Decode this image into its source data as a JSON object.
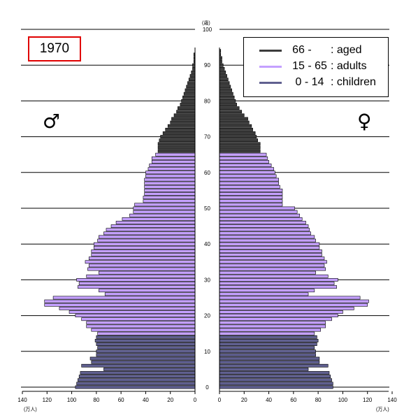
{
  "year_label": "1970",
  "male_symbol": "♂",
  "female_symbol": "♀",
  "legend": [
    {
      "age": "66 -     ",
      "name": ": aged",
      "color": "#3c3c3c"
    },
    {
      "age": "15 - 65",
      "name": ": adults",
      "color": "#c4a0ff"
    },
    {
      "age": "0 - 14",
      "name": ": children",
      "color": "#606090"
    }
  ],
  "units": {
    "age_unit": "(歳)",
    "pop_unit_left": "(万人)",
    "pop_unit_right": "(万人)"
  },
  "chart_data": {
    "type": "bar",
    "orientation": "horizontal-butterfly",
    "title": "1970",
    "age_axis": {
      "ticks": [
        0,
        10,
        20,
        30,
        40,
        50,
        60,
        70,
        80,
        90,
        100
      ],
      "unit": "(歳)"
    },
    "x_axis": {
      "ticks": [
        140,
        120,
        100,
        80,
        60,
        40,
        20,
        0
      ],
      "range": [
        0,
        140
      ],
      "unit": "(万人)"
    },
    "age_groups": [
      {
        "name": "children",
        "range": [
          0,
          14
        ],
        "color": "#606090"
      },
      {
        "name": "adults",
        "range": [
          15,
          65
        ],
        "color": "#c4a0ff"
      },
      {
        "name": "aged",
        "range": [
          66,
          100
        ],
        "color": "#3c3c3c"
      }
    ],
    "ages": [
      0,
      1,
      2,
      3,
      4,
      5,
      6,
      7,
      8,
      9,
      10,
      11,
      12,
      13,
      14,
      15,
      16,
      17,
      18,
      19,
      20,
      21,
      22,
      23,
      24,
      25,
      26,
      27,
      28,
      29,
      30,
      31,
      32,
      33,
      34,
      35,
      36,
      37,
      38,
      39,
      40,
      41,
      42,
      43,
      44,
      45,
      46,
      47,
      48,
      49,
      50,
      51,
      52,
      53,
      54,
      55,
      56,
      57,
      58,
      59,
      60,
      61,
      62,
      63,
      64,
      65,
      66,
      67,
      68,
      69,
      70,
      71,
      72,
      73,
      74,
      75,
      76,
      77,
      78,
      79,
      80,
      81,
      82,
      83,
      84,
      85,
      86,
      87,
      88,
      89,
      90,
      91,
      92,
      93,
      94
    ],
    "male": [
      97,
      96,
      95,
      94,
      93,
      74,
      92,
      84,
      85,
      80,
      80,
      79,
      80,
      81,
      80,
      79,
      84,
      88,
      88,
      92,
      97,
      102,
      110,
      122,
      122,
      115,
      73,
      78,
      95,
      94,
      96,
      88,
      78,
      87,
      86,
      89,
      86,
      84,
      84,
      82,
      82,
      79,
      78,
      74,
      72,
      68,
      64,
      59,
      53,
      50,
      50,
      49,
      42,
      42,
      41,
      41,
      41,
      41,
      41,
      40,
      40,
      38,
      37,
      35,
      35,
      32,
      30,
      30,
      30,
      29,
      28,
      26,
      24,
      22,
      20,
      19,
      17,
      15,
      14,
      12,
      11,
      10,
      9,
      8,
      7,
      6,
      5,
      4,
      3,
      2,
      2,
      1,
      1,
      1,
      0
    ],
    "female": [
      92,
      92,
      91,
      90,
      89,
      72,
      88,
      81,
      81,
      78,
      78,
      77,
      79,
      80,
      79,
      77,
      82,
      86,
      86,
      91,
      96,
      100,
      109,
      120,
      121,
      114,
      72,
      77,
      95,
      93,
      96,
      88,
      78,
      86,
      85,
      87,
      85,
      83,
      83,
      81,
      81,
      78,
      77,
      74,
      73,
      72,
      70,
      67,
      65,
      63,
      61,
      51,
      51,
      51,
      51,
      51,
      49,
      48,
      48,
      46,
      45,
      44,
      42,
      40,
      39,
      38,
      33,
      33,
      33,
      31,
      30,
      29,
      27,
      26,
      24,
      23,
      20,
      18,
      16,
      14,
      13,
      12,
      11,
      10,
      9,
      8,
      7,
      6,
      5,
      4,
      3,
      2,
      2,
      1,
      1
    ]
  }
}
